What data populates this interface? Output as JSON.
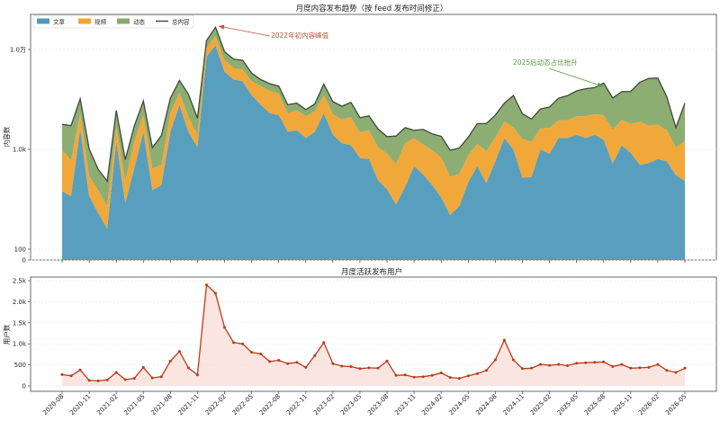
{
  "chart_data": [
    {
      "type": "area",
      "title": "月度内容发布趋势（按 feed 发布时间修正）",
      "xlabel": "",
      "ylabel": "内容数",
      "yscale": "symlog",
      "y_ticks": [
        0,
        100,
        1000,
        10000
      ],
      "y_tick_labels": [
        "0",
        "100",
        "1.0k",
        "1.0万"
      ],
      "stacked": true,
      "legend_position": "top-left",
      "grid": "horizontal-dotted",
      "x": [
        "2020-08",
        "2020-09",
        "2020-10",
        "2020-11",
        "2020-12",
        "2021-01",
        "2021-02",
        "2021-03",
        "2021-04",
        "2021-05",
        "2021-06",
        "2021-07",
        "2021-08",
        "2021-09",
        "2021-10",
        "2021-11",
        "2021-12",
        "2022-01",
        "2022-02",
        "2022-03",
        "2022-04",
        "2022-05",
        "2022-06",
        "2022-07",
        "2022-08",
        "2022-09",
        "2022-10",
        "2022-11",
        "2022-12",
        "2023-01",
        "2023-02",
        "2023-03",
        "2023-04",
        "2023-05",
        "2023-06",
        "2023-07",
        "2023-08",
        "2023-09",
        "2023-10",
        "2023-11",
        "2023-12",
        "2024-01",
        "2024-02",
        "2024-03",
        "2024-04",
        "2024-05",
        "2024-06",
        "2024-07",
        "2024-08",
        "2024-09",
        "2024-10",
        "2024-11",
        "2024-12",
        "2025-01",
        "2025-02",
        "2025-03",
        "2025-04",
        "2025-05",
        "2025-06",
        "2025-07",
        "2025-08",
        "2025-09",
        "2025-10",
        "2025-11",
        "2025-12",
        "2026-01",
        "2026-02",
        "2026-03",
        "2026-04",
        "2026-05"
      ],
      "series": [
        {
          "name": "文章",
          "color": "#4f9aba",
          "values": [
            380,
            340,
            1600,
            340,
            230,
            160,
            1200,
            290,
            650,
            1500,
            390,
            440,
            1500,
            2800,
            1500,
            1050,
            8500,
            11000,
            6000,
            5000,
            4800,
            3500,
            2800,
            2300,
            2200,
            1500,
            1550,
            1300,
            1500,
            2300,
            1400,
            1150,
            1100,
            820,
            800,
            490,
            400,
            280,
            420,
            680,
            560,
            440,
            330,
            220,
            270,
            470,
            680,
            460,
            760,
            1300,
            1000,
            520,
            530,
            1000,
            900,
            1300,
            1300,
            1400,
            1300,
            1400,
            1250,
            720,
            1100,
            920,
            700,
            730,
            800,
            760,
            550,
            480
          ]
        },
        {
          "name": "视频",
          "color": "#f0a330",
          "values": [
            600,
            440,
            700,
            200,
            160,
            110,
            500,
            190,
            550,
            700,
            250,
            260,
            800,
            900,
            600,
            350,
            2000,
            2500,
            1800,
            1500,
            1500,
            1300,
            1500,
            1550,
            1400,
            800,
            900,
            850,
            900,
            1200,
            850,
            850,
            1000,
            650,
            760,
            560,
            510,
            430,
            740,
            610,
            560,
            540,
            500,
            310,
            300,
            400,
            460,
            500,
            560,
            600,
            660,
            750,
            660,
            620,
            750,
            650,
            650,
            750,
            850,
            850,
            950,
            850,
            880,
            880,
            1200,
            1000,
            970,
            800,
            500,
            720
          ]
        },
        {
          "name": "动态",
          "color": "#86aa6a",
          "values": [
            800,
            950,
            900,
            470,
            240,
            210,
            750,
            310,
            510,
            850,
            400,
            670,
            950,
            1200,
            1450,
            650,
            1800,
            3200,
            1700,
            1500,
            1500,
            1000,
            700,
            700,
            700,
            500,
            450,
            350,
            450,
            1000,
            750,
            700,
            850,
            600,
            600,
            550,
            430,
            650,
            490,
            260,
            460,
            450,
            520,
            450,
            460,
            450,
            670,
            850,
            890,
            1000,
            1800,
            1000,
            820,
            920,
            1000,
            1300,
            1500,
            1700,
            1900,
            1900,
            2400,
            1700,
            1800,
            2000,
            2800,
            3400,
            3400,
            1800,
            600,
            1700
          ]
        }
      ],
      "total": {
        "name": "总内容",
        "color": "#3d4a3a",
        "values": [
          1780,
          1730,
          3200,
          1010,
          630,
          480,
          2450,
          790,
          1710,
          3050,
          1040,
          1370,
          3250,
          4900,
          3550,
          2050,
          12300,
          16700,
          9500,
          8000,
          7800,
          5800,
          5000,
          4550,
          4300,
          2800,
          2900,
          2500,
          2850,
          4500,
          3000,
          2700,
          2950,
          2070,
          2160,
          1600,
          1340,
          1360,
          1650,
          1550,
          1580,
          1430,
          1350,
          980,
          1030,
          1320,
          1810,
          1810,
          2210,
          2900,
          3460,
          2270,
          2010,
          2540,
          2650,
          3250,
          3450,
          3850,
          4050,
          4150,
          4600,
          3270,
          3780,
          3800,
          4700,
          5130,
          5170,
          3360,
          1650,
          2900
        ]
      },
      "annotations": [
        {
          "text": "2022年初内容峰值",
          "target_x": "2022-01",
          "target_y": 16700,
          "color": "#b8522e"
        },
        {
          "text": "2025后动态占比抬升",
          "target_x": "2025-08",
          "target_y": 4600,
          "color": "#5a9a3a"
        }
      ]
    },
    {
      "type": "line",
      "title": "月度活跃发布用户",
      "xlabel": "",
      "ylabel": "用户数",
      "ylim": [
        0,
        2500
      ],
      "y_ticks": [
        0,
        500,
        1000,
        1500,
        2000,
        2500
      ],
      "y_tick_labels": [
        "0",
        "500",
        "1.0k",
        "1.5k",
        "2.0k",
        "2.5k"
      ],
      "grid": "horizontal-dotted",
      "x_tick_labels": [
        "2020-08",
        "2020-11",
        "2021-02",
        "2021-05",
        "2021-08",
        "2021-11",
        "2022-02",
        "2022-05",
        "2022-08",
        "2022-11",
        "2023-02",
        "2023-05",
        "2023-08",
        "2023-11",
        "2024-02",
        "2024-05",
        "2024-08",
        "2024-11",
        "2025-02",
        "2025-05",
        "2025-08",
        "2025-11",
        "2026-02",
        "2026-05"
      ],
      "series": [
        {
          "color": "#b83c1a",
          "fill": "#f9dcd5",
          "values": [
            270,
            240,
            380,
            130,
            120,
            140,
            320,
            150,
            180,
            440,
            190,
            220,
            590,
            820,
            430,
            260,
            2400,
            2200,
            1390,
            1030,
            1000,
            800,
            760,
            580,
            610,
            530,
            560,
            440,
            720,
            1030,
            530,
            470,
            460,
            410,
            430,
            420,
            590,
            250,
            260,
            210,
            220,
            250,
            310,
            200,
            180,
            240,
            290,
            370,
            620,
            1090,
            620,
            410,
            420,
            510,
            490,
            510,
            480,
            540,
            550,
            560,
            570,
            460,
            510,
            420,
            430,
            440,
            510,
            370,
            320,
            420
          ]
        }
      ]
    }
  ],
  "legend": [
    {
      "label": "文章",
      "kind": "swatch",
      "color": "#4f9aba"
    },
    {
      "label": "视频",
      "kind": "swatch",
      "color": "#f0a330"
    },
    {
      "label": "动态",
      "kind": "swatch",
      "color": "#86aa6a"
    },
    {
      "label": "总内容",
      "kind": "line",
      "color": "#3d4a3a"
    }
  ]
}
